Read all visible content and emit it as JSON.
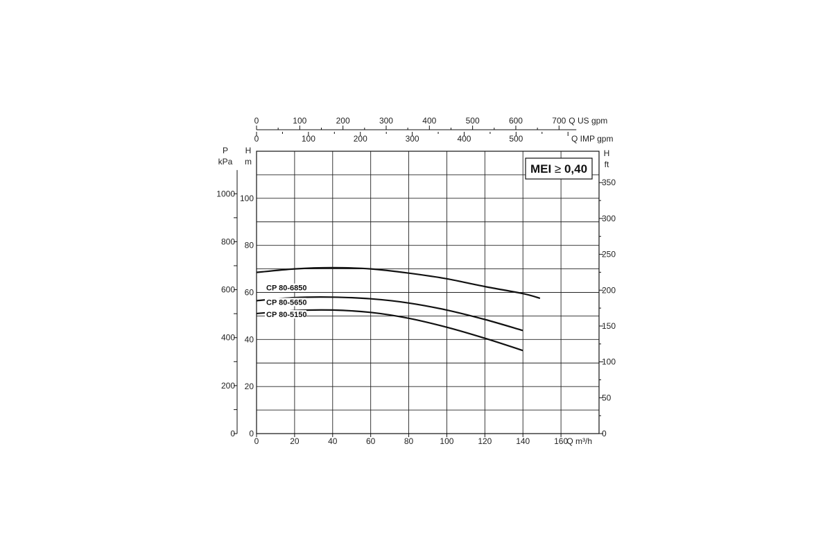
{
  "chart_data": {
    "type": "line",
    "x_axis": {
      "label": "Q m³/h",
      "range": [
        0,
        180
      ],
      "ticks": [
        0,
        20,
        40,
        60,
        80,
        100,
        120,
        140,
        160
      ]
    },
    "y_axis_head_m": {
      "label_top": "H",
      "label_unit": "m",
      "range": [
        0,
        120
      ],
      "ticks": [
        0,
        20,
        40,
        60,
        80,
        100
      ]
    },
    "y_axis_pressure_kpa": {
      "label_top": "P",
      "label_unit": "kPa",
      "ticks": [
        0,
        200,
        400,
        600,
        800,
        1000
      ]
    },
    "y_axis_head_ft": {
      "label_top": "H",
      "label_unit": "ft",
      "ticks": [
        0,
        50,
        100,
        150,
        200,
        250,
        300,
        350
      ]
    },
    "top_axis_us_gpm": {
      "label": "Q US gpm",
      "ticks": [
        0,
        100,
        200,
        300,
        400,
        500,
        600,
        700
      ]
    },
    "top_axis_imp_gpm": {
      "label": "Q IMP gpm",
      "ticks": [
        0,
        100,
        200,
        300,
        400,
        500
      ]
    },
    "grid": true,
    "annotation": {
      "mei_prefix": "MEI",
      "mei_symbol": "≥",
      "mei_value": "0,40"
    },
    "series": [
      {
        "name": "CP 80-6850",
        "points": [
          [
            0,
            68.5
          ],
          [
            20,
            70
          ],
          [
            40,
            70.5
          ],
          [
            60,
            70
          ],
          [
            80,
            68.2
          ],
          [
            100,
            65.8
          ],
          [
            120,
            62.5
          ],
          [
            140,
            59.5
          ],
          [
            149,
            57.5
          ]
        ]
      },
      {
        "name": "CP 80-5650",
        "points": [
          [
            0,
            56.5
          ],
          [
            20,
            57.8
          ],
          [
            40,
            58
          ],
          [
            60,
            57.3
          ],
          [
            80,
            55.5
          ],
          [
            100,
            52.5
          ],
          [
            120,
            48.5
          ],
          [
            140,
            43.8
          ]
        ]
      },
      {
        "name": "CP 80-5150",
        "points": [
          [
            0,
            51
          ],
          [
            20,
            52.3
          ],
          [
            40,
            52.5
          ],
          [
            60,
            51.5
          ],
          [
            80,
            49
          ],
          [
            100,
            45.2
          ],
          [
            120,
            40.5
          ],
          [
            140,
            35.3
          ]
        ]
      }
    ]
  }
}
